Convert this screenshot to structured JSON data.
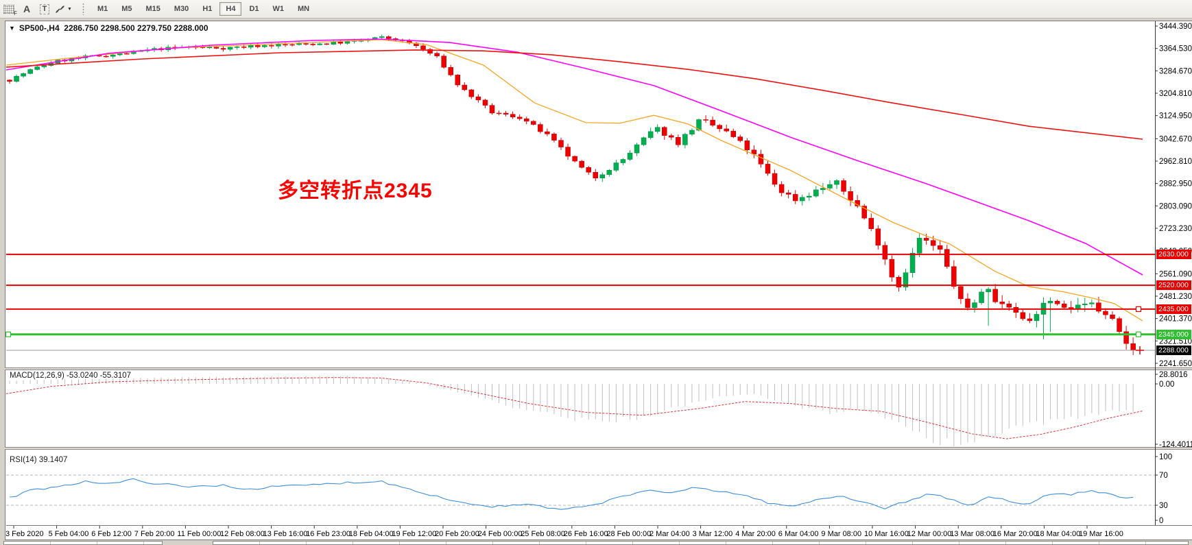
{
  "toolbar": {
    "grid_icon_letter": "F",
    "a_label": "A",
    "t_label": "T",
    "caret": "▼",
    "timeframes": [
      "M1",
      "M5",
      "M15",
      "M30",
      "H1",
      "H4",
      "D1",
      "W1",
      "MN"
    ],
    "active_timeframe": "H4"
  },
  "chart": {
    "title": "SP500-,H4  2286.750 2298.500 2279.750 2288.000",
    "dropdown_glyph": "▼",
    "annotation_text": "多空转折点2345",
    "annotation_color": "#fb0300",
    "up_color": "#00b050",
    "up_stroke": "#00813a",
    "down_color": "#ee0000",
    "down_stroke": "#b40000"
  },
  "macd": {
    "label": "MACD(12,26,9) -53.0240 -55.3107",
    "axis_labels": [
      "28.8016",
      "0.00",
      "-124.4011"
    ],
    "hist_color": "#c0c0c0",
    "signal_color": "#e03131"
  },
  "rsi": {
    "label": "RSI(14) 39.1407",
    "axis_labels": [
      "100",
      "70",
      "30",
      "0"
    ],
    "line_color": "#3f8edb",
    "levels": [
      70,
      30
    ]
  },
  "chart_data": {
    "type": "candlestick",
    "symbol": "SP500-",
    "timeframe": "H4",
    "ohlc_display": {
      "open": "2286.750",
      "high": "2298.500",
      "low": "2279.750",
      "close": "2288.000"
    },
    "bars": 164,
    "last_close": 2288.0,
    "y_axis_labels": [
      "3444.390",
      "3364.530",
      "3284.670",
      "3204.810",
      "3124.950",
      "3042.670",
      "2962.810",
      "2882.950",
      "2803.090",
      "2723.230",
      "2643.050",
      "2561.090",
      "2481.230",
      "2401.370",
      "2321.510",
      "2241.650"
    ],
    "x_axis_labels": [
      "3 Feb 2020",
      "5 Feb 04:00",
      "6 Feb 12:00",
      "7 Feb 20:00",
      "11 Feb 00:00",
      "12 Feb 08:00",
      "13 Feb 16:00",
      "16 Feb 23:00",
      "18 Feb 04:00",
      "19 Feb 12:00",
      "20 Feb 20:00",
      "24 Feb 00:00",
      "25 Feb 08:00",
      "26 Feb 16:00",
      "28 Feb 00:00",
      "2 Mar 04:00",
      "3 Mar 12:00",
      "4 Mar 20:00",
      "6 Mar 04:00",
      "9 Mar 08:00",
      "10 Mar 16:00",
      "12 Mar 00:00",
      "13 Mar 08:00",
      "16 Mar 20:00",
      "18 Mar 04:00",
      "19 Mar 16:00"
    ],
    "levels": [
      {
        "label": "2630.000",
        "price": 2630.0,
        "line_color": "#e60000",
        "badge_color": "#e60000",
        "width": 2,
        "handles": []
      },
      {
        "label": "2520.000",
        "price": 2520.0,
        "line_color": "#e60000",
        "badge_color": "#e60000",
        "width": 2,
        "handles": []
      },
      {
        "label": "2435.000",
        "price": 2435.0,
        "line_color": "#e60000",
        "badge_color": "#e60000",
        "width": 2,
        "handles": [
          "right"
        ]
      },
      {
        "label": "2345.000",
        "price": 2345.0,
        "line_color": "#2fbf2f",
        "badge_color": "#2fbf2f",
        "width": 3,
        "handles": [
          "left",
          "right"
        ]
      }
    ],
    "current_price_line": {
      "label": "2288.000",
      "price": 2288.0,
      "line_color": "#9a9a9a",
      "badge_color": "#000000"
    },
    "price_path": [
      [
        0.0,
        3252
      ],
      [
        0.02,
        3290
      ],
      [
        0.04,
        3318
      ],
      [
        0.07,
        3335
      ],
      [
        0.1,
        3345
      ],
      [
        0.13,
        3362
      ],
      [
        0.16,
        3370
      ],
      [
        0.19,
        3366
      ],
      [
        0.22,
        3374
      ],
      [
        0.25,
        3378
      ],
      [
        0.28,
        3382
      ],
      [
        0.31,
        3390
      ],
      [
        0.33,
        3404
      ],
      [
        0.345,
        3396
      ],
      [
        0.36,
        3378
      ],
      [
        0.38,
        3335
      ],
      [
        0.4,
        3230
      ],
      [
        0.43,
        3135
      ],
      [
        0.455,
        3118
      ],
      [
        0.48,
        3050
      ],
      [
        0.505,
        2950
      ],
      [
        0.52,
        2902
      ],
      [
        0.545,
        2965
      ],
      [
        0.575,
        3082
      ],
      [
        0.595,
        3028
      ],
      [
        0.615,
        3110
      ],
      [
        0.64,
        3062
      ],
      [
        0.66,
        2995
      ],
      [
        0.685,
        2860
      ],
      [
        0.7,
        2825
      ],
      [
        0.715,
        2852
      ],
      [
        0.735,
        2888
      ],
      [
        0.755,
        2800
      ],
      [
        0.775,
        2660
      ],
      [
        0.79,
        2505
      ],
      [
        0.81,
        2688
      ],
      [
        0.828,
        2645
      ],
      [
        0.85,
        2428
      ],
      [
        0.868,
        2505
      ],
      [
        0.886,
        2445
      ],
      [
        0.905,
        2388
      ],
      [
        0.925,
        2475
      ],
      [
        0.945,
        2428
      ],
      [
        0.963,
        2452
      ],
      [
        0.98,
        2398
      ],
      [
        1.0,
        2288
      ]
    ],
    "ma_fast_orange": [
      [
        0,
        3305
      ],
      [
        0.055,
        3330
      ],
      [
        0.145,
        3366
      ],
      [
        0.27,
        3386
      ],
      [
        0.33,
        3396
      ],
      [
        0.37,
        3378
      ],
      [
        0.42,
        3305
      ],
      [
        0.465,
        3170
      ],
      [
        0.51,
        3100
      ],
      [
        0.54,
        3098
      ],
      [
        0.57,
        3126
      ],
      [
        0.6,
        3095
      ],
      [
        0.63,
        3035
      ],
      [
        0.69,
        2930
      ],
      [
        0.75,
        2805
      ],
      [
        0.78,
        2745
      ],
      [
        0.81,
        2695
      ],
      [
        0.83,
        2668
      ],
      [
        0.87,
        2570
      ],
      [
        0.9,
        2515
      ],
      [
        0.93,
        2497
      ],
      [
        0.955,
        2475
      ],
      [
        0.975,
        2455
      ],
      [
        1.0,
        2393
      ]
    ],
    "ma_mid_magenta": [
      [
        0,
        3288
      ],
      [
        0.09,
        3347
      ],
      [
        0.18,
        3376
      ],
      [
        0.27,
        3393
      ],
      [
        0.33,
        3398
      ],
      [
        0.39,
        3386
      ],
      [
        0.45,
        3351
      ],
      [
        0.51,
        3293
      ],
      [
        0.57,
        3232
      ],
      [
        0.63,
        3141
      ],
      [
        0.69,
        3048
      ],
      [
        0.75,
        2963
      ],
      [
        0.81,
        2882
      ],
      [
        0.855,
        2816
      ],
      [
        0.9,
        2750
      ],
      [
        0.95,
        2669
      ],
      [
        1.0,
        2557
      ]
    ],
    "ma_slow_red": [
      [
        0,
        3298
      ],
      [
        0.12,
        3327
      ],
      [
        0.24,
        3349
      ],
      [
        0.36,
        3359
      ],
      [
        0.42,
        3356
      ],
      [
        0.48,
        3342
      ],
      [
        0.54,
        3317
      ],
      [
        0.6,
        3290
      ],
      [
        0.66,
        3256
      ],
      [
        0.72,
        3214
      ],
      [
        0.78,
        3170
      ],
      [
        0.84,
        3129
      ],
      [
        0.9,
        3087
      ],
      [
        1.0,
        3041
      ]
    ],
    "ma_colors": {
      "fast": "#f5a623",
      "mid": "#ff00ff",
      "slow": "#ee1111"
    },
    "macd_hist": [
      [
        0,
        6
      ],
      [
        0.05,
        9
      ],
      [
        0.1,
        11
      ],
      [
        0.15,
        13
      ],
      [
        0.2,
        14
      ],
      [
        0.25,
        15
      ],
      [
        0.3,
        16
      ],
      [
        0.33,
        13
      ],
      [
        0.36,
        4
      ],
      [
        0.4,
        -18
      ],
      [
        0.44,
        -42
      ],
      [
        0.48,
        -62
      ],
      [
        0.52,
        -78
      ],
      [
        0.56,
        -68
      ],
      [
        0.6,
        -45
      ],
      [
        0.63,
        -26
      ],
      [
        0.66,
        -20
      ],
      [
        0.685,
        -34
      ],
      [
        0.71,
        -52
      ],
      [
        0.73,
        -58
      ],
      [
        0.75,
        -50
      ],
      [
        0.77,
        -62
      ],
      [
        0.8,
        -92
      ],
      [
        0.82,
        -112
      ],
      [
        0.84,
        -121
      ],
      [
        0.86,
        -112
      ],
      [
        0.88,
        -98
      ],
      [
        0.9,
        -88
      ],
      [
        0.92,
        -80
      ],
      [
        0.94,
        -72
      ],
      [
        0.96,
        -62
      ],
      [
        0.98,
        -56
      ],
      [
        1.0,
        -53.0
      ]
    ],
    "macd_signal": [
      [
        0,
        -20
      ],
      [
        0.04,
        -5
      ],
      [
        0.09,
        4
      ],
      [
        0.15,
        8
      ],
      [
        0.22,
        11
      ],
      [
        0.29,
        13
      ],
      [
        0.33,
        12
      ],
      [
        0.37,
        2
      ],
      [
        0.41,
        -16
      ],
      [
        0.46,
        -40
      ],
      [
        0.51,
        -58
      ],
      [
        0.56,
        -64
      ],
      [
        0.61,
        -50
      ],
      [
        0.65,
        -36
      ],
      [
        0.69,
        -40
      ],
      [
        0.73,
        -50
      ],
      [
        0.77,
        -56
      ],
      [
        0.81,
        -78
      ],
      [
        0.85,
        -102
      ],
      [
        0.88,
        -112
      ],
      [
        0.91,
        -103
      ],
      [
        0.94,
        -88
      ],
      [
        0.97,
        -70
      ],
      [
        1.0,
        -55.3
      ]
    ],
    "rsi_series": [
      [
        0,
        40
      ],
      [
        0.02,
        50
      ],
      [
        0.05,
        57
      ],
      [
        0.07,
        62
      ],
      [
        0.09,
        58
      ],
      [
        0.11,
        64
      ],
      [
        0.13,
        59
      ],
      [
        0.16,
        54
      ],
      [
        0.19,
        57
      ],
      [
        0.21,
        51
      ],
      [
        0.24,
        55
      ],
      [
        0.27,
        57
      ],
      [
        0.3,
        60
      ],
      [
        0.33,
        62
      ],
      [
        0.35,
        54
      ],
      [
        0.37,
        46
      ],
      [
        0.4,
        34
      ],
      [
        0.43,
        28
      ],
      [
        0.46,
        31
      ],
      [
        0.49,
        24
      ],
      [
        0.51,
        27
      ],
      [
        0.54,
        39
      ],
      [
        0.57,
        51
      ],
      [
        0.59,
        45
      ],
      [
        0.61,
        54
      ],
      [
        0.64,
        47
      ],
      [
        0.66,
        41
      ],
      [
        0.68,
        31
      ],
      [
        0.7,
        29
      ],
      [
        0.72,
        38
      ],
      [
        0.74,
        43
      ],
      [
        0.76,
        34
      ],
      [
        0.78,
        26
      ],
      [
        0.8,
        36
      ],
      [
        0.82,
        46
      ],
      [
        0.84,
        36
      ],
      [
        0.855,
        29
      ],
      [
        0.87,
        41
      ],
      [
        0.89,
        36
      ],
      [
        0.905,
        31
      ],
      [
        0.925,
        46
      ],
      [
        0.945,
        43
      ],
      [
        0.96,
        50
      ],
      [
        0.98,
        44
      ],
      [
        1.0,
        39.1
      ]
    ]
  }
}
